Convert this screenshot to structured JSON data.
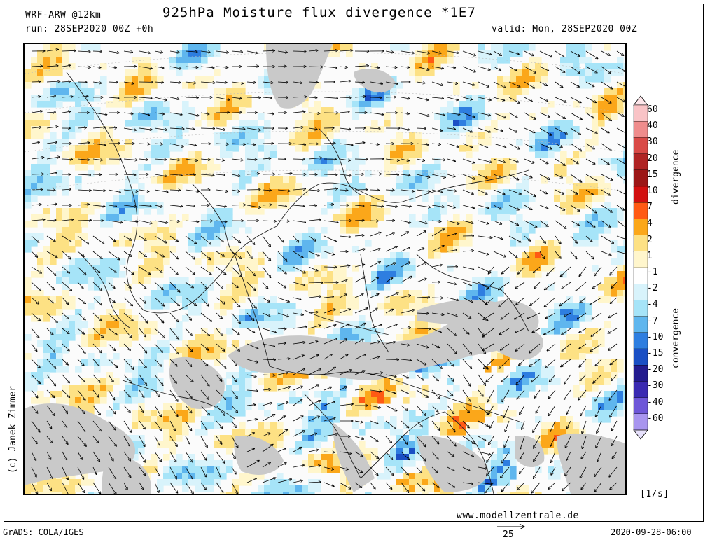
{
  "header": {
    "model": "WRF-ARW @12km",
    "run": "run: 28SEP2020 00Z +0h",
    "title": "925hPa Moisture flux divergence *1E7",
    "valid": "valid: Mon, 28SEP2020 00Z"
  },
  "colorbar": {
    "levels": [
      {
        "label": "60",
        "color": "#f9c3c6"
      },
      {
        "label": "40",
        "color": "#ef8c8c"
      },
      {
        "label": "30",
        "color": "#d94a47"
      },
      {
        "label": "20",
        "color": "#b02424"
      },
      {
        "label": "15",
        "color": "#9c1717"
      },
      {
        "label": "10",
        "color": "#d21010"
      },
      {
        "label": "7",
        "color": "#ff5a14"
      },
      {
        "label": "4",
        "color": "#fba71a"
      },
      {
        "label": "2",
        "color": "#fde184"
      },
      {
        "label": "1",
        "color": "#fff6cc"
      },
      {
        "label": "-1",
        "color": "#ffffff"
      },
      {
        "label": "-2",
        "color": "#d8f3fb"
      },
      {
        "label": "-4",
        "color": "#a6e4f8"
      },
      {
        "label": "-7",
        "color": "#5fb6ee"
      },
      {
        "label": "-10",
        "color": "#2e7ee0"
      },
      {
        "label": "-15",
        "color": "#1a4fc4"
      },
      {
        "label": "-20",
        "color": "#231b8f"
      },
      {
        "label": "-30",
        "color": "#3a2ab2"
      },
      {
        "label": "-40",
        "color": "#6e57d8"
      },
      {
        "label": "-60",
        "color": "#a895ef"
      }
    ],
    "top_tip_color": "#fde6ea",
    "bottom_tip_color": "#e6e0fb",
    "divergence_label": "divergence",
    "convergence_label": "convergence",
    "unit": "[1/s]"
  },
  "footer": {
    "credit": "(c) Janek Zimmer",
    "website": "www.modellzentrale.de",
    "grads": "GrADS: COLA/IGES",
    "vector_ref": "25",
    "timestamp": "2020-09-28-06:00"
  },
  "map": {
    "land_mask_color": "#c9c9c9",
    "background_color": "#fbfbfb"
  }
}
